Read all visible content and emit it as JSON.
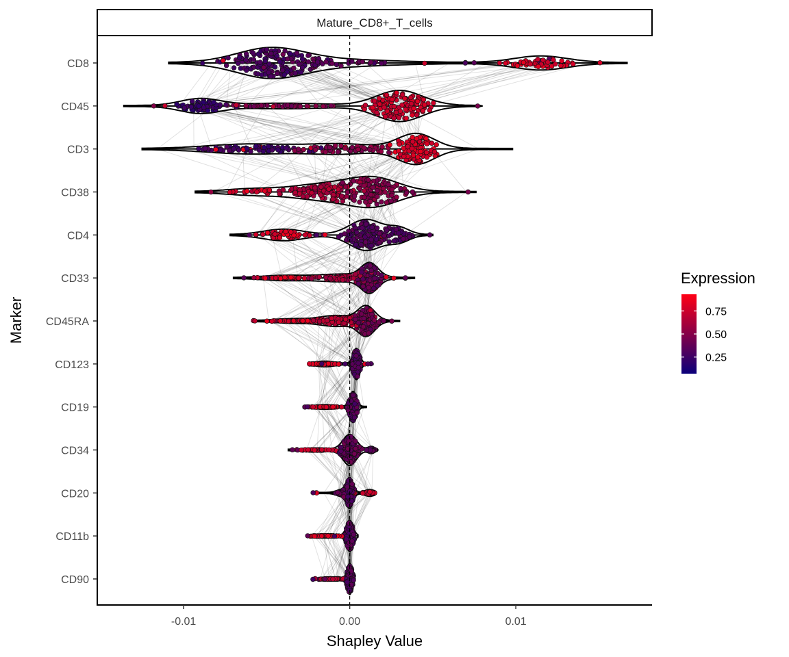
{
  "chart_data": {
    "type": "violin-beeswarm",
    "facet_label": "Mature_CD8+_T_cells",
    "xlabel": "Shapley Value",
    "ylabel": "Marker",
    "xlim": [
      -0.0152,
      0.0182
    ],
    "x_ticks": [
      {
        "value": -0.01,
        "label": "-0.01"
      },
      {
        "value": 0.0,
        "label": "0.00"
      },
      {
        "value": 0.01,
        "label": "0.01"
      }
    ],
    "reference_line_x": 0.0,
    "markers": [
      {
        "name": "CD8",
        "min": -0.0109,
        "max": 0.0167,
        "spread": 0.0046,
        "modes": [
          {
            "x": -0.0048,
            "w": 0.002,
            "h": 1.0,
            "e": 0.25
          },
          {
            "x": -0.0015,
            "w": 0.0035,
            "h": 0.25,
            "e": 0.35
          },
          {
            "x": 0.0115,
            "w": 0.0016,
            "h": 0.5,
            "e": 0.85
          }
        ]
      },
      {
        "name": "CD45",
        "min": -0.0136,
        "max": 0.008,
        "spread": 0.005,
        "modes": [
          {
            "x": -0.009,
            "w": 0.0012,
            "h": 0.45,
            "e": 0.18
          },
          {
            "x": -0.004,
            "w": 0.0025,
            "h": 0.15,
            "e": 0.45
          },
          {
            "x": 0.003,
            "w": 0.0014,
            "h": 1.0,
            "e": 0.8
          }
        ]
      },
      {
        "name": "CD3",
        "min": -0.0125,
        "max": 0.0098,
        "spread": 0.0045,
        "modes": [
          {
            "x": -0.006,
            "w": 0.0025,
            "h": 0.3,
            "e": 0.22
          },
          {
            "x": -0.0005,
            "w": 0.002,
            "h": 0.3,
            "e": 0.5
          },
          {
            "x": 0.004,
            "w": 0.0011,
            "h": 1.0,
            "e": 0.85
          }
        ]
      },
      {
        "name": "CD38",
        "min": -0.0093,
        "max": 0.0076,
        "spread": 0.0052,
        "modes": [
          {
            "x": -0.006,
            "w": 0.0015,
            "h": 0.2,
            "e": 0.85
          },
          {
            "x": -0.0015,
            "w": 0.002,
            "h": 0.6,
            "e": 0.65
          },
          {
            "x": 0.0015,
            "w": 0.0015,
            "h": 1.0,
            "e": 0.5
          }
        ]
      },
      {
        "name": "CD4",
        "min": -0.0072,
        "max": 0.005,
        "spread": 0.004,
        "modes": [
          {
            "x": -0.004,
            "w": 0.0012,
            "h": 0.35,
            "e": 0.85
          },
          {
            "x": 0.001,
            "w": 0.001,
            "h": 1.0,
            "e": 0.3
          },
          {
            "x": 0.003,
            "w": 0.0006,
            "h": 0.4,
            "e": 0.28
          }
        ]
      },
      {
        "name": "CD33",
        "min": -0.007,
        "max": 0.0039,
        "spread": 0.004,
        "modes": [
          {
            "x": -0.004,
            "w": 0.0012,
            "h": 0.15,
            "e": 0.85
          },
          {
            "x": -0.0005,
            "w": 0.0015,
            "h": 0.25,
            "e": 0.6
          },
          {
            "x": 0.0012,
            "w": 0.0005,
            "h": 1.0,
            "e": 0.35
          }
        ]
      },
      {
        "name": "CD45RA",
        "min": -0.0059,
        "max": 0.003,
        "spread": 0.004,
        "modes": [
          {
            "x": -0.0035,
            "w": 0.001,
            "h": 0.12,
            "e": 0.85
          },
          {
            "x": -0.0008,
            "w": 0.001,
            "h": 0.35,
            "e": 0.7
          },
          {
            "x": 0.001,
            "w": 0.0005,
            "h": 1.0,
            "e": 0.4
          }
        ]
      },
      {
        "name": "CD123",
        "min": -0.0025,
        "max": 0.0014,
        "spread": 0.0022,
        "modes": [
          {
            "x": -0.0015,
            "w": 0.0006,
            "h": 0.15,
            "e": 0.85
          },
          {
            "x": 0.0004,
            "w": 0.0002,
            "h": 1.0,
            "e": 0.3
          }
        ]
      },
      {
        "name": "CD19",
        "min": -0.0028,
        "max": 0.001,
        "spread": 0.002,
        "modes": [
          {
            "x": -0.0015,
            "w": 0.0006,
            "h": 0.12,
            "e": 0.85
          },
          {
            "x": 0.0002,
            "w": 0.0002,
            "h": 1.0,
            "e": 0.3
          }
        ]
      },
      {
        "name": "CD34",
        "min": -0.0037,
        "max": 0.0017,
        "spread": 0.002,
        "modes": [
          {
            "x": -0.002,
            "w": 0.0008,
            "h": 0.1,
            "e": 0.8
          },
          {
            "x": 0.0,
            "w": 0.0004,
            "h": 1.0,
            "e": 0.35
          },
          {
            "x": 0.0013,
            "w": 0.0002,
            "h": 0.2,
            "e": 0.3
          }
        ]
      },
      {
        "name": "CD20",
        "min": -0.0023,
        "max": 0.0015,
        "spread": 0.002,
        "modes": [
          {
            "x": -0.0005,
            "w": 0.0003,
            "h": 0.2,
            "e": 0.35
          },
          {
            "x": 0.0,
            "w": 0.0002,
            "h": 1.0,
            "e": 0.3
          },
          {
            "x": 0.0012,
            "w": 0.0003,
            "h": 0.2,
            "e": 0.8
          }
        ]
      },
      {
        "name": "CD11b",
        "min": -0.0026,
        "max": 0.0005,
        "spread": 0.0016,
        "modes": [
          {
            "x": -0.0015,
            "w": 0.0006,
            "h": 0.1,
            "e": 0.85
          },
          {
            "x": 0.0,
            "w": 0.0002,
            "h": 1.0,
            "e": 0.3
          }
        ]
      },
      {
        "name": "CD90",
        "min": -0.0023,
        "max": 0.0003,
        "spread": 0.0015,
        "modes": [
          {
            "x": -0.001,
            "w": 0.0006,
            "h": 0.1,
            "e": 0.7
          },
          {
            "x": 0.0,
            "w": 0.00015,
            "h": 1.0,
            "e": 0.3
          }
        ]
      }
    ],
    "legend": {
      "title": "Expression",
      "position": "right",
      "ticks": [
        {
          "value": 0.75,
          "label": "0.75"
        },
        {
          "value": 0.5,
          "label": "0.50"
        },
        {
          "value": 0.25,
          "label": "0.25"
        }
      ],
      "range": [
        0.07,
        0.93
      ],
      "low_color": "#0b007a",
      "high_color": "#ff0015"
    },
    "grid": false
  }
}
